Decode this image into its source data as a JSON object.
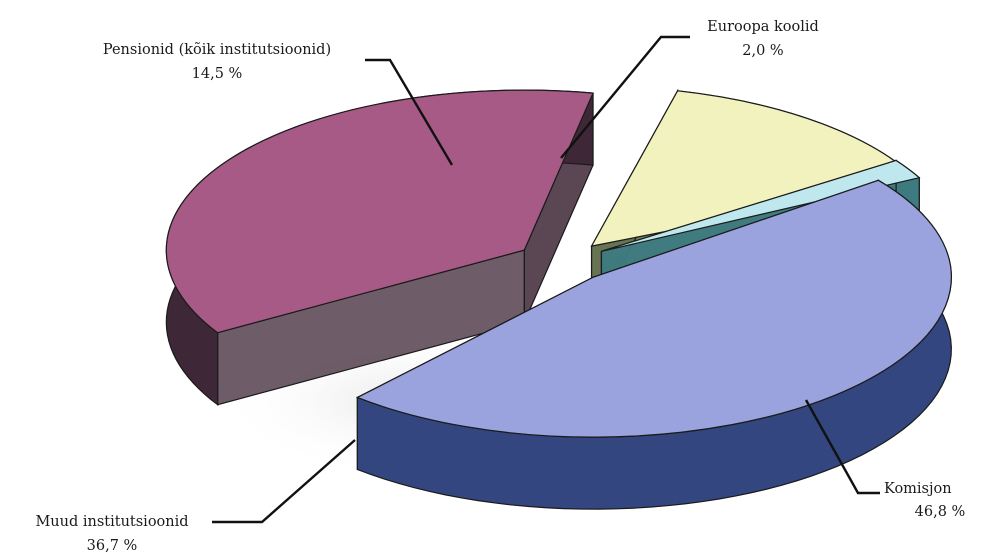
{
  "chart_data": {
    "type": "pie",
    "style": "3d-exploded",
    "legend": "none",
    "series": [
      {
        "values": [
          46.8,
          36.7,
          14.5,
          2.0
        ],
        "categories": [
          "Komisjon",
          "Muud institutsioonid",
          "Pensionid (kõik institutsioonid)",
          "Euroopa koolid"
        ]
      }
    ],
    "slices": [
      {
        "label": "Komisjon",
        "value": 46.8,
        "value_text": "46,8 %",
        "color": "#9aa3de",
        "side_color": "#33467f"
      },
      {
        "label": "Muud institutsioonid",
        "value": 36.7,
        "value_text": "36,7 %",
        "color": "#a85a86",
        "side_color": "#3e2736"
      },
      {
        "label": "Pensionid (kõik institutsioonid)",
        "value": 14.5,
        "value_text": "14,5 %",
        "color": "#f2f2be",
        "side_color": "#616f4c"
      },
      {
        "label": "Euroopa koolid",
        "value": 2.0,
        "value_text": "2,0 %",
        "color": "#bfe8ee",
        "side_color": "#3e7b80"
      }
    ]
  }
}
